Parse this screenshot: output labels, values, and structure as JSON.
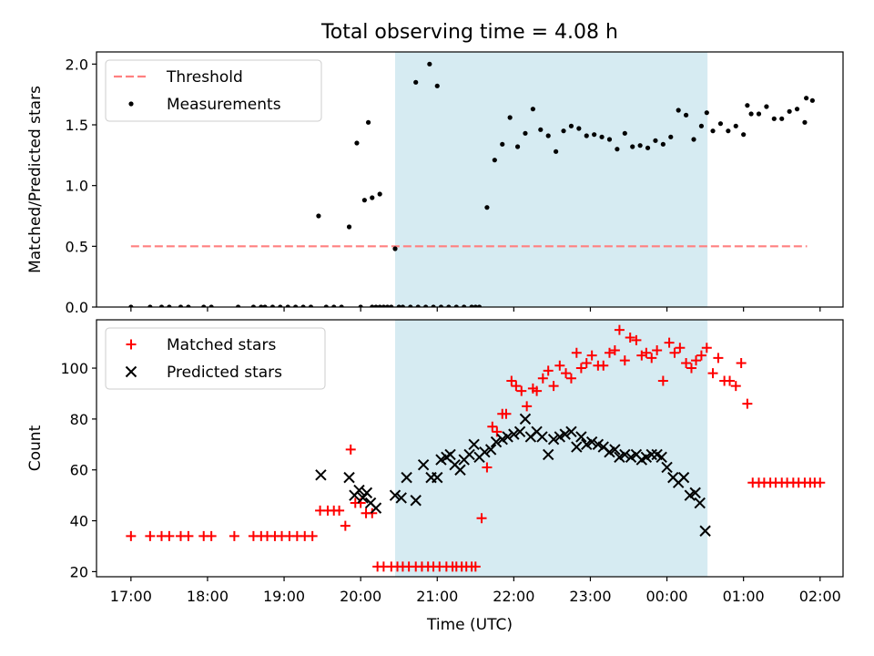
{
  "figure": {
    "title": "Total observing time = 4.08 h"
  },
  "chart_data": [
    {
      "type": "scatter",
      "ylabel": "Matched/Predicted stars",
      "xlim": [
        -0.45,
        9.3
      ],
      "ylim": [
        0,
        2.1
      ],
      "x_unit": "hours after 17:00 UTC",
      "yticks": [
        0.0,
        0.5,
        1.0,
        1.5,
        2.0
      ],
      "ytick_labels": [
        "0.0",
        "0.5",
        "1.0",
        "1.5",
        "2.0"
      ],
      "shaded_span": [
        3.45,
        7.53
      ],
      "legend": {
        "location": "upper left",
        "entries": [
          "Threshold",
          "Measurements"
        ]
      },
      "threshold": {
        "name": "Threshold",
        "value": 0.5,
        "x_range": [
          0,
          8.83
        ],
        "color": "#ff8080"
      },
      "series": [
        {
          "name": "Measurements",
          "color": "#000000",
          "x": [
            0,
            0.25,
            0.4,
            0.5,
            0.65,
            0.75,
            0.95,
            1.05,
            1.4,
            1.6,
            1.7,
            1.75,
            1.85,
            1.95,
            2.05,
            2.15,
            2.25,
            2.35,
            2.45,
            2.55,
            2.65,
            2.75,
            2.85,
            2.95,
            3.05,
            3.15,
            3.25,
            3.35,
            3.45,
            3.55,
            3.65,
            3.75,
            3.85,
            3.95,
            4.05,
            4.15,
            4.25,
            4.35,
            4.45,
            4.5,
            4.55,
            4.65,
            4.75,
            4.85,
            4.95,
            5.05,
            5.15,
            5.25,
            5.35,
            5.45,
            5.55,
            5.65,
            5.75,
            5.85,
            5.95,
            6.05,
            6.15,
            6.25,
            6.35,
            6.45,
            6.55,
            6.65,
            6.75,
            6.85,
            6.95,
            7.05,
            7.15,
            7.25,
            7.35,
            7.45,
            7.52,
            7.6,
            7.7,
            7.8,
            7.9,
            8.0,
            8.1,
            8.2,
            8.3,
            8.4,
            8.5,
            8.6,
            8.7,
            8.8,
            8.9,
            8.82,
            8.05,
            3.72,
            3.9,
            4.0,
            3.1,
            3.2,
            3.3,
            3.4,
            3.5,
            3.0,
            3.15,
            3.25
          ],
          "y": [
            0,
            0,
            0,
            0,
            0,
            0,
            0,
            0,
            0,
            0,
            0,
            0,
            0,
            0,
            0,
            0,
            0,
            0,
            0.75,
            0,
            0,
            0,
            0.66,
            1.35,
            0.88,
            0.9,
            0.93,
            0,
            0.48,
            0,
            0,
            0,
            0,
            0,
            0,
            0,
            0,
            0,
            0,
            0,
            0,
            0.82,
            1.21,
            1.34,
            1.56,
            1.32,
            1.43,
            1.63,
            1.46,
            1.41,
            1.28,
            1.45,
            1.49,
            1.47,
            1.41,
            1.42,
            1.4,
            1.38,
            1.3,
            1.43,
            1.32,
            1.33,
            1.31,
            1.37,
            1.34,
            1.4,
            1.62,
            1.58,
            1.38,
            1.49,
            1.6,
            1.45,
            1.51,
            1.45,
            1.49,
            1.42,
            1.59,
            1.59,
            1.65,
            1.55,
            1.55,
            1.61,
            1.63,
            1.52,
            1.7,
            1.72,
            1.66,
            1.85,
            2.0,
            1.82,
            1.52,
            0,
            0,
            0,
            0,
            0,
            0,
            0
          ]
        }
      ]
    },
    {
      "type": "scatter",
      "xlabel": "Time (UTC)",
      "ylabel": "Count",
      "xlim": [
        -0.45,
        9.3
      ],
      "ylim": [
        18,
        119
      ],
      "x_unit": "hours after 17:00 UTC",
      "xticks": [
        0,
        1,
        2,
        3,
        4,
        5,
        6,
        7,
        8,
        9
      ],
      "xtick_labels": [
        "17:00",
        "18:00",
        "19:00",
        "20:00",
        "21:00",
        "22:00",
        "23:00",
        "00:00",
        "01:00",
        "02:00"
      ],
      "yticks": [
        20,
        40,
        60,
        80,
        100
      ],
      "ytick_labels": [
        "20",
        "40",
        "60",
        "80",
        "100"
      ],
      "shaded_span": [
        3.45,
        7.53
      ],
      "legend": {
        "location": "upper left",
        "entries": [
          "Matched stars",
          "Predicted stars"
        ]
      },
      "series": [
        {
          "name": "Matched stars",
          "marker": "+",
          "color": "#ff0000",
          "x": [
            0,
            0.25,
            0.4,
            0.5,
            0.65,
            0.75,
            0.95,
            1.05,
            1.35,
            1.6,
            1.7,
            1.78,
            1.88,
            1.97,
            2.07,
            2.17,
            2.27,
            2.37,
            2.47,
            2.57,
            2.65,
            2.72,
            2.8,
            2.87,
            2.93,
            3.0,
            3.07,
            3.15,
            3.22,
            3.3,
            3.4,
            3.48,
            3.55,
            3.63,
            3.72,
            3.8,
            3.88,
            3.95,
            4.03,
            4.12,
            4.2,
            4.25,
            4.32,
            4.38,
            4.45,
            4.5,
            4.58,
            4.65,
            4.72,
            4.78,
            4.85,
            4.9,
            4.97,
            5.03,
            5.1,
            5.17,
            5.25,
            5.3,
            5.38,
            5.45,
            5.52,
            5.6,
            5.68,
            5.75,
            5.82,
            5.88,
            5.95,
            6.02,
            6.1,
            6.17,
            6.25,
            6.32,
            6.38,
            6.45,
            6.52,
            6.6,
            6.67,
            6.73,
            6.8,
            6.87,
            6.95,
            7.03,
            7.1,
            7.17,
            7.25,
            7.32,
            7.38,
            7.45,
            7.52,
            7.6,
            7.67,
            7.75,
            7.82,
            7.9,
            7.97,
            8.05,
            8.12,
            8.2,
            8.27,
            8.35,
            8.42,
            8.5,
            8.57,
            8.65,
            8.72,
            8.8,
            8.87,
            8.93,
            9.0
          ],
          "y": [
            34,
            34,
            34,
            34,
            34,
            34,
            34,
            34,
            34,
            34,
            34,
            34,
            34,
            34,
            34,
            34,
            34,
            34,
            44,
            44,
            44,
            44,
            38,
            68,
            47,
            47,
            43,
            43,
            22,
            22,
            22,
            22,
            22,
            22,
            22,
            22,
            22,
            22,
            22,
            22,
            22,
            22,
            22,
            22,
            22,
            22,
            41,
            61,
            77,
            75,
            82,
            82,
            95,
            93,
            91,
            85,
            92,
            91,
            96,
            99,
            93,
            101,
            98,
            96,
            106,
            100,
            102,
            105,
            101,
            101,
            106,
            107,
            115,
            103,
            112,
            111,
            105,
            106,
            104,
            107,
            95,
            110,
            106,
            108,
            102,
            100,
            103,
            105,
            108,
            98,
            104,
            95,
            95,
            93,
            102,
            86,
            55,
            55,
            55,
            55,
            55,
            55,
            55,
            55,
            55,
            55,
            55,
            55,
            55
          ]
        },
        {
          "name": "Predicted stars",
          "marker": "x",
          "color": "#000000",
          "x": [
            2.48,
            2.85,
            2.92,
            2.98,
            3.03,
            3.08,
            3.13,
            3.2,
            3.45,
            3.53,
            3.6,
            3.72,
            3.82,
            3.92,
            4.0,
            4.05,
            4.12,
            4.17,
            4.23,
            4.3,
            4.35,
            4.42,
            4.48,
            4.55,
            4.62,
            4.7,
            4.77,
            4.85,
            4.92,
            5.0,
            5.08,
            5.15,
            5.22,
            5.3,
            5.37,
            5.45,
            5.52,
            5.6,
            5.67,
            5.75,
            5.82,
            5.88,
            5.95,
            6.02,
            6.1,
            6.17,
            6.25,
            6.32,
            6.38,
            6.45,
            6.53,
            6.6,
            6.67,
            6.73,
            6.8,
            6.87,
            6.93,
            7.0,
            7.08,
            7.15,
            7.22,
            7.3,
            7.37,
            7.43,
            7.5
          ],
          "y": [
            58,
            57,
            50,
            52,
            49,
            51,
            47,
            45,
            50,
            49,
            57,
            48,
            62,
            57,
            57,
            64,
            65,
            66,
            62,
            60,
            64,
            66,
            70,
            65,
            67,
            68,
            71,
            72,
            73,
            74,
            75,
            80,
            73,
            75,
            73,
            66,
            72,
            73,
            74,
            75,
            69,
            73,
            70,
            71,
            70,
            69,
            67,
            68,
            65,
            66,
            65,
            66,
            64,
            65,
            66,
            66,
            65,
            61,
            57,
            55,
            57,
            50,
            51,
            47,
            36
          ]
        }
      ]
    }
  ]
}
